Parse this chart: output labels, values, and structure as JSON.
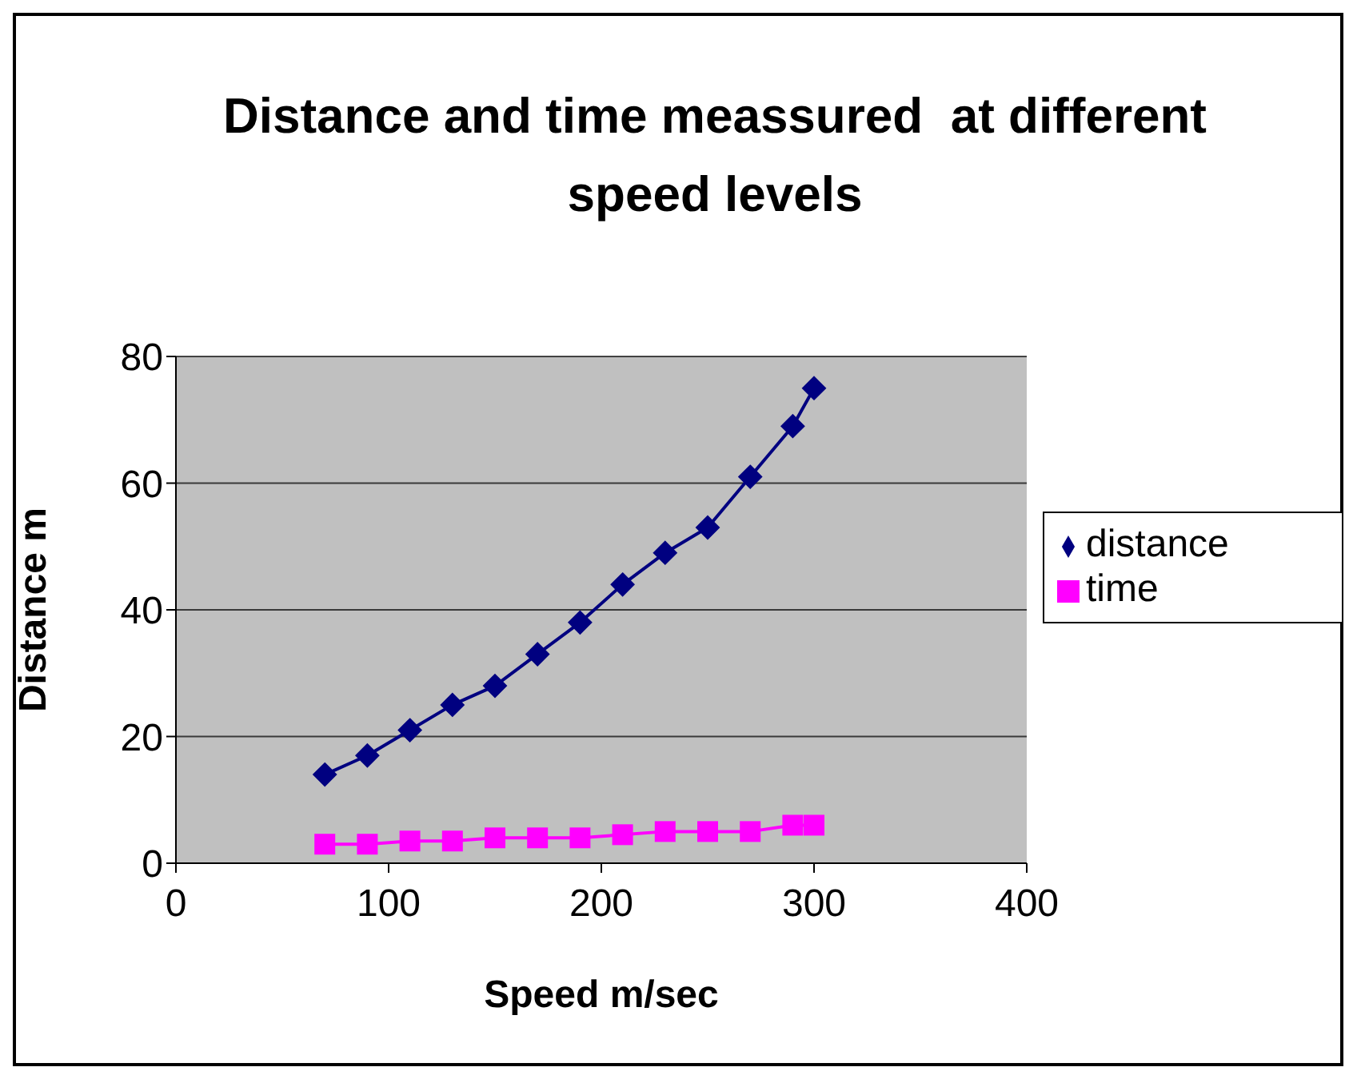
{
  "chart_data": {
    "type": "line",
    "title": "Distance and time meassured  at different speed levels",
    "xlabel": "Speed m/sec",
    "ylabel": "Distance m",
    "x": [
      70,
      90,
      110,
      130,
      150,
      170,
      190,
      210,
      230,
      250,
      270,
      290,
      300
    ],
    "series": [
      {
        "name": "distance",
        "color": "#000080",
        "marker": "diamond",
        "values": [
          14,
          17,
          21,
          25,
          28,
          33,
          38,
          44,
          49,
          53,
          61,
          69,
          75
        ]
      },
      {
        "name": "time",
        "color": "#ff00ff",
        "marker": "square",
        "values": [
          3,
          3,
          3.5,
          3.5,
          4,
          4,
          4,
          4.5,
          5,
          5,
          5,
          6,
          6
        ]
      }
    ],
    "xlim": [
      0,
      400
    ],
    "xticks": [
      0,
      100,
      200,
      300,
      400
    ],
    "ylim": [
      0,
      80
    ],
    "yticks": [
      0,
      20,
      40,
      60,
      80
    ],
    "grid": "y",
    "legend": "right"
  }
}
